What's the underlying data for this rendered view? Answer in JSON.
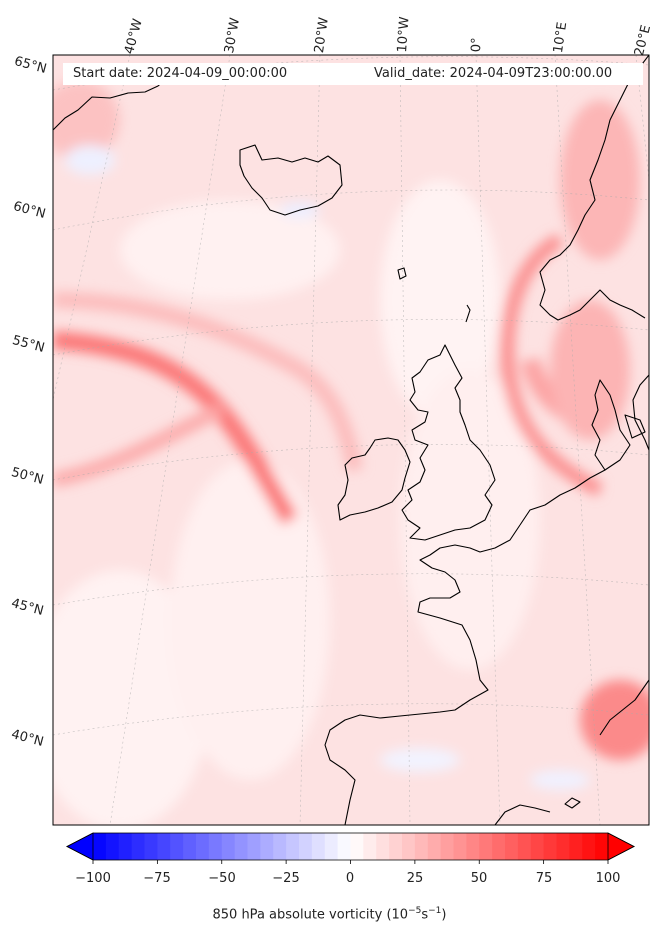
{
  "header": {
    "start_label": "Start date: 2024-04-09_00:00:00",
    "valid_label": "Valid_date: 2024-04-09T23:00:00.00"
  },
  "map": {
    "projection": "Lambert Conformal",
    "field": "850 hPa absolute vorticity",
    "lon_labels": [
      "40°W",
      "30°W",
      "20°W",
      "10°W",
      "0°",
      "10°E",
      "20°E"
    ],
    "lat_labels": [
      "65°N",
      "60°N",
      "55°N",
      "50°N",
      "45°N",
      "40°N"
    ],
    "colors": {
      "negative": "#0000ff",
      "zero": "#ffffff",
      "positive": "#ff0000",
      "coast": "#000000"
    }
  },
  "colorbar": {
    "ticks": [
      "−100",
      "−75",
      "−50",
      "−25",
      "0",
      "25",
      "50",
      "75",
      "100"
    ],
    "min": -100,
    "max": 100,
    "levels": 40,
    "extend": "both",
    "cmap": "bwr",
    "title_main": "850 hPa absolute vorticity (10",
    "title_exp1": "−5",
    "title_mid": "s",
    "title_exp2": "−1",
    "title_end": ")"
  }
}
